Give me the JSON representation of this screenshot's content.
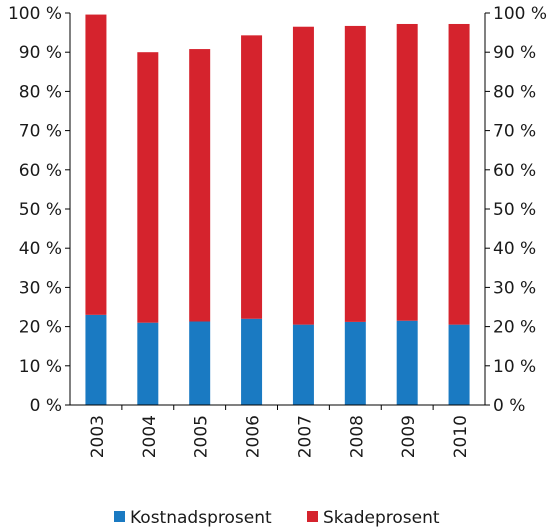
{
  "chart_data": {
    "type": "bar",
    "stacked": true,
    "categories": [
      "2003",
      "2004",
      "2005",
      "2006",
      "2007",
      "2008",
      "2009",
      "2010"
    ],
    "series": [
      {
        "name": "Kostnadsprosent",
        "color": "#1a7ac2",
        "values": [
          23,
          21,
          21.3,
          22,
          20.5,
          21.2,
          21.5,
          20.5
        ]
      },
      {
        "name": "Skadeprosent",
        "color": "#d5232d",
        "values": [
          76.6,
          69,
          69.5,
          72.3,
          76,
          75.5,
          75.7,
          76.7
        ]
      }
    ],
    "yticks": [
      "0 %",
      "10 %",
      "20 %",
      "30 %",
      "40 %",
      "50 %",
      "60 %",
      "70 %",
      "80 %",
      "90 %",
      "100 %"
    ],
    "ylim": [
      0,
      100
    ],
    "title": "",
    "xlabel": "",
    "ylabel": "",
    "grid": false,
    "legend_position": "bottom"
  }
}
